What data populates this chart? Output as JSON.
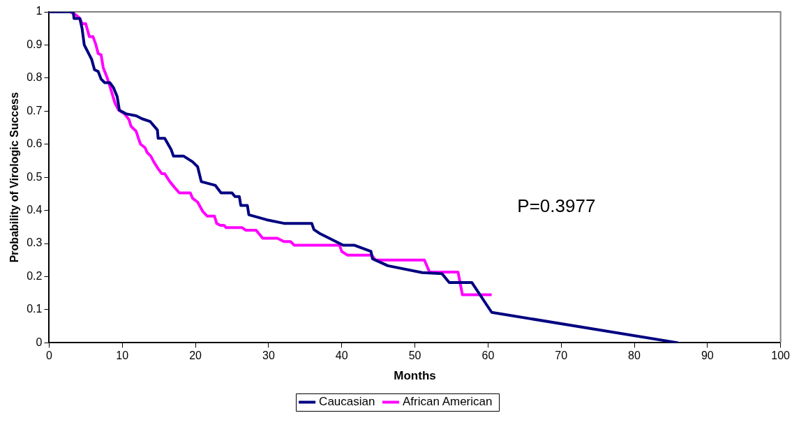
{
  "chart_data": {
    "type": "line",
    "xlabel": "Months",
    "ylabel": "Probability of Virologic Success",
    "xlim": [
      0,
      100
    ],
    "xticks": [
      0,
      10,
      20,
      30,
      40,
      50,
      60,
      70,
      80,
      90,
      100
    ],
    "ylim": [
      0,
      1
    ],
    "yticks": [
      0,
      0.1,
      0.2,
      0.3,
      0.4,
      0.5,
      0.6,
      0.7,
      0.8,
      0.9,
      1
    ],
    "grid": false,
    "legend": "bottom",
    "marker": "none",
    "line_style": "solid",
    "annotations": [
      "P=0.3977"
    ],
    "series": [
      {
        "name": "Caucasian",
        "color": "#000080",
        "x": [
          0,
          3.3,
          3.4,
          4.2,
          4.5,
          4.8,
          5.8,
          6.2,
          6.7,
          7.1,
          7.6,
          8.3,
          8.8,
          9.3,
          9.6,
          10.5,
          11.9,
          12.7,
          13.8,
          14.8,
          14.9,
          15.8,
          16.7,
          17,
          18.4,
          19.6,
          20.3,
          20.8,
          22.7,
          23.5,
          25,
          25.4,
          26,
          26.2,
          27.1,
          27.3,
          29.7,
          32.1,
          35.9,
          36.2,
          37.1,
          40.2,
          41.7,
          44,
          44.2,
          46.3,
          51,
          53.7,
          54.7,
          57.8,
          60.5,
          86
        ],
        "values": [
          1,
          1,
          0.98,
          0.98,
          0.95,
          0.9,
          0.857,
          0.825,
          0.82,
          0.797,
          0.786,
          0.786,
          0.771,
          0.744,
          0.703,
          0.692,
          0.686,
          0.677,
          0.669,
          0.643,
          0.618,
          0.618,
          0.583,
          0.564,
          0.564,
          0.547,
          0.532,
          0.487,
          0.476,
          0.453,
          0.453,
          0.442,
          0.442,
          0.415,
          0.415,
          0.387,
          0.372,
          0.361,
          0.361,
          0.342,
          0.329,
          0.295,
          0.295,
          0.276,
          0.254,
          0.233,
          0.212,
          0.209,
          0.182,
          0.182,
          0.092,
          0
        ]
      },
      {
        "name": "African American",
        "color": "#ff00ff",
        "x": [
          0,
          2.9,
          3.7,
          4.2,
          4.5,
          5,
          5.5,
          6,
          6.4,
          6.7,
          7.1,
          7.4,
          7.9,
          8.5,
          9,
          9.5,
          10.3,
          10.9,
          11.2,
          11.9,
          12.2,
          12.5,
          13.1,
          13.4,
          13.9,
          14.3,
          14.9,
          15.4,
          15.8,
          16.5,
          17.2,
          17.8,
          19.3,
          19.6,
          20.3,
          21,
          21.6,
          22.6,
          22.9,
          23.4,
          23.9,
          24.2,
          26.4,
          26.9,
          28.3,
          29.2,
          31.2,
          32.1,
          33,
          33.5,
          39.7,
          40,
          40.8,
          44.1,
          44.6,
          51.3,
          52,
          55.9,
          56.5,
          60.5
        ],
        "values": [
          1,
          1,
          0.99,
          0.98,
          0.964,
          0.964,
          0.925,
          0.925,
          0.9,
          0.874,
          0.87,
          0.831,
          0.803,
          0.761,
          0.724,
          0.703,
          0.692,
          0.675,
          0.654,
          0.639,
          0.618,
          0.6,
          0.59,
          0.575,
          0.564,
          0.547,
          0.526,
          0.511,
          0.511,
          0.487,
          0.468,
          0.453,
          0.453,
          0.437,
          0.425,
          0.397,
          0.383,
          0.383,
          0.361,
          0.355,
          0.355,
          0.348,
          0.348,
          0.34,
          0.34,
          0.316,
          0.316,
          0.306,
          0.306,
          0.295,
          0.295,
          0.276,
          0.265,
          0.265,
          0.25,
          0.25,
          0.214,
          0.214,
          0.145,
          0.145
        ]
      }
    ]
  }
}
